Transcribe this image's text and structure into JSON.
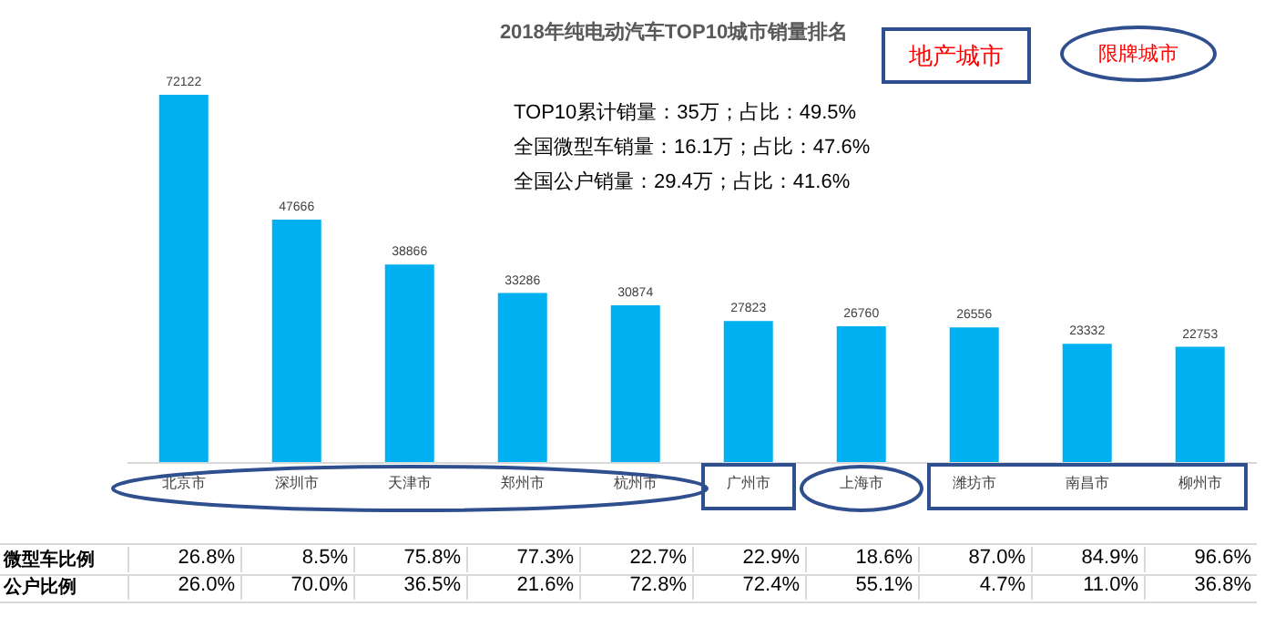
{
  "chart_data": {
    "type": "bar",
    "title": "2018年纯电动汽车TOP10城市销量排名",
    "categories": [
      "北京市",
      "深圳市",
      "天津市",
      "郑州市",
      "杭州市",
      "广州市",
      "上海市",
      "潍坊市",
      "南昌市",
      "柳州市"
    ],
    "values": [
      72122,
      47666,
      38866,
      33286,
      30874,
      27823,
      26760,
      26556,
      23332,
      22753
    ],
    "color": "#00b0f0",
    "data_labels": true,
    "grid": false,
    "legend": false,
    "annotations": [
      "地产城市",
      "限牌城市",
      "TOP10累计销量：35万；占比：49.5%",
      "全国微型车销量：16.1万；占比：47.6%",
      "全国公户销量：29.4万；占比：41.6%",
      "微型车比例",
      "26.8%",
      "8.5%",
      "75.8%",
      "77.3%",
      "22.7%",
      "22.9%",
      "18.6%",
      "87.0%",
      "84.9%",
      "96.6%",
      "公户比例",
      "26.0%",
      "70.0%",
      "36.5%",
      "21.6%",
      "72.8%",
      "72.4%",
      "55.1%",
      "4.7%",
      "11.0%",
      "36.8%"
    ]
  }
}
